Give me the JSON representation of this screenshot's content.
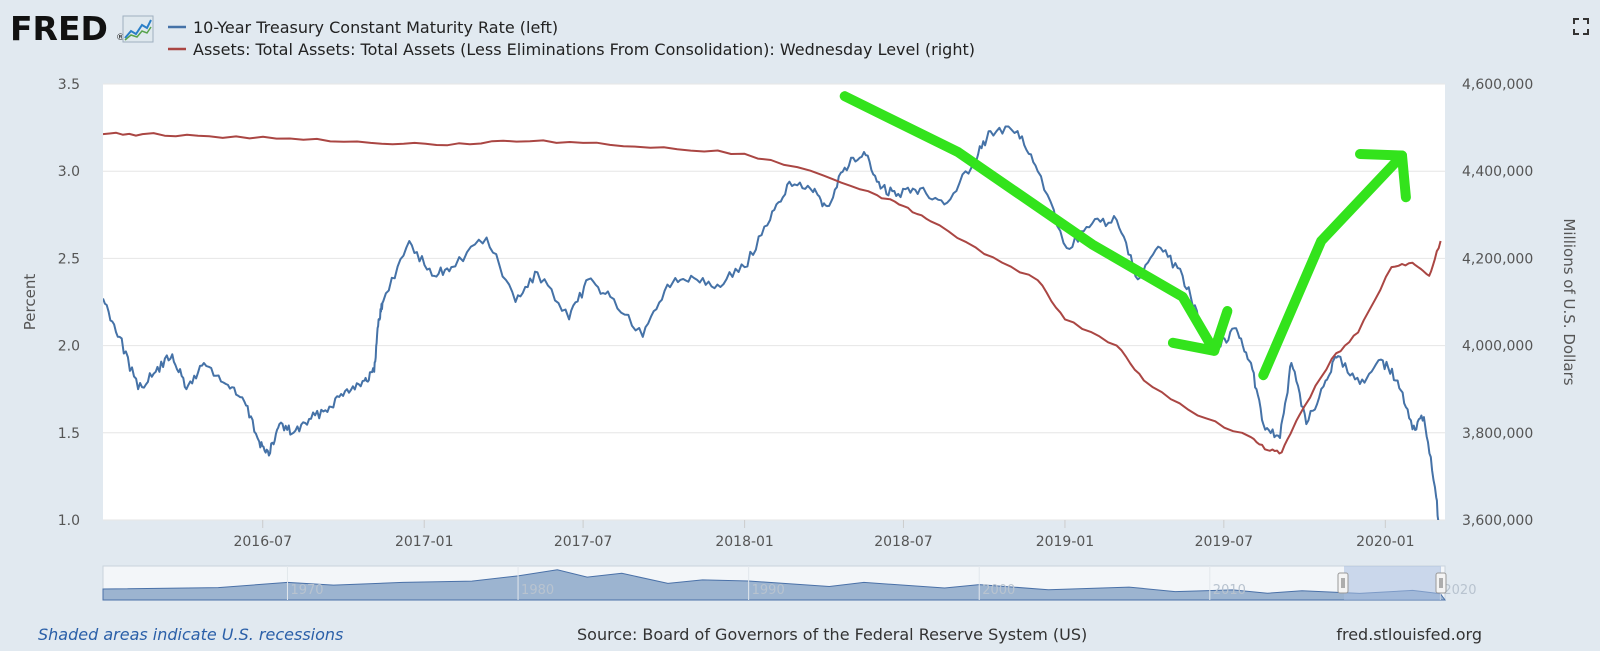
{
  "brand": {
    "logo_text": "FRED",
    "logo_mark": "®",
    "colors": {
      "panel_bg": "#e1e9f0",
      "plot_bg": "#ffffff"
    }
  },
  "controls": {
    "fullscreen_icon": "fullscreen-icon"
  },
  "chart_data": {
    "type": "line",
    "x_range": [
      "2016-01-01",
      "2020-03-09"
    ],
    "x_ticks": [
      "2016-07",
      "2017-01",
      "2017-07",
      "2018-01",
      "2018-07",
      "2019-01",
      "2019-07",
      "2020-01"
    ],
    "left_axis": {
      "label": "Percent",
      "range": [
        1.0,
        3.5
      ],
      "ticks": [
        "1.0",
        "1.5",
        "2.0",
        "2.5",
        "3.0",
        "3.5"
      ]
    },
    "right_axis": {
      "label": "Millions of U.S. Dollars",
      "range": [
        3600000,
        4600000
      ],
      "ticks": [
        "3,600,000",
        "3,800,000",
        "4,000,000",
        "4,200,000",
        "4,400,000",
        "4,600,000"
      ]
    },
    "grid": "horizontal",
    "legend_placement": "top-left",
    "series": [
      {
        "name": "10-Year Treasury Constant Maturity Rate (left)",
        "axis": "left",
        "color": "#4572a7",
        "points": [
          [
            "2016-01-01",
            2.27
          ],
          [
            "2016-01-20",
            2.05
          ],
          [
            "2016-02-10",
            1.75
          ],
          [
            "2016-03-01",
            1.85
          ],
          [
            "2016-03-20",
            1.95
          ],
          [
            "2016-04-05",
            1.75
          ],
          [
            "2016-04-25",
            1.9
          ],
          [
            "2016-05-20",
            1.78
          ],
          [
            "2016-06-10",
            1.68
          ],
          [
            "2016-06-27",
            1.45
          ],
          [
            "2016-07-08",
            1.37
          ],
          [
            "2016-07-20",
            1.55
          ],
          [
            "2016-08-05",
            1.5
          ],
          [
            "2016-08-25",
            1.58
          ],
          [
            "2016-09-15",
            1.65
          ],
          [
            "2016-10-05",
            1.75
          ],
          [
            "2016-10-25",
            1.8
          ],
          [
            "2016-11-05",
            1.85
          ],
          [
            "2016-11-10",
            2.15
          ],
          [
            "2016-11-15",
            2.25
          ],
          [
            "2016-12-15",
            2.6
          ],
          [
            "2017-01-10",
            2.4
          ],
          [
            "2017-02-01",
            2.45
          ],
          [
            "2017-03-13",
            2.62
          ],
          [
            "2017-04-15",
            2.25
          ],
          [
            "2017-05-10",
            2.42
          ],
          [
            "2017-06-15",
            2.15
          ],
          [
            "2017-07-07",
            2.38
          ],
          [
            "2017-08-01",
            2.28
          ],
          [
            "2017-09-07",
            2.05
          ],
          [
            "2017-10-05",
            2.35
          ],
          [
            "2017-11-01",
            2.4
          ],
          [
            "2017-12-01",
            2.35
          ],
          [
            "2018-01-01",
            2.45
          ],
          [
            "2018-01-30",
            2.72
          ],
          [
            "2018-02-21",
            2.94
          ],
          [
            "2018-03-20",
            2.88
          ],
          [
            "2018-04-05",
            2.8
          ],
          [
            "2018-04-25",
            3.02
          ],
          [
            "2018-05-17",
            3.11
          ],
          [
            "2018-06-05",
            2.9
          ],
          [
            "2018-06-25",
            2.87
          ],
          [
            "2018-07-20",
            2.9
          ],
          [
            "2018-08-20",
            2.82
          ],
          [
            "2018-09-20",
            3.07
          ],
          [
            "2018-10-08",
            3.23
          ],
          [
            "2018-11-08",
            3.23
          ],
          [
            "2018-12-01",
            3.0
          ],
          [
            "2019-01-03",
            2.56
          ],
          [
            "2019-02-01",
            2.7
          ],
          [
            "2019-03-01",
            2.72
          ],
          [
            "2019-03-25",
            2.38
          ],
          [
            "2019-04-20",
            2.56
          ],
          [
            "2019-05-15",
            2.4
          ],
          [
            "2019-06-05",
            2.12
          ],
          [
            "2019-06-25",
            2.0
          ],
          [
            "2019-07-15",
            2.1
          ],
          [
            "2019-08-01",
            1.9
          ],
          [
            "2019-08-15",
            1.55
          ],
          [
            "2019-09-03",
            1.47
          ],
          [
            "2019-09-16",
            1.9
          ],
          [
            "2019-10-03",
            1.55
          ],
          [
            "2019-10-25",
            1.8
          ],
          [
            "2019-11-08",
            1.94
          ],
          [
            "2019-12-03",
            1.78
          ],
          [
            "2019-12-27",
            1.92
          ],
          [
            "2020-01-15",
            1.8
          ],
          [
            "2020-02-01",
            1.52
          ],
          [
            "2020-02-14",
            1.59
          ],
          [
            "2020-02-28",
            1.13
          ],
          [
            "2020-03-06",
            0.71
          ]
        ]
      },
      {
        "name": "Assets: Total Assets: Total Assets (Less Eliminations From Consolidation): Wednesday Level (right)",
        "axis": "right",
        "color": "#aa4643",
        "points": [
          [
            "2016-01-01",
            4485000
          ],
          [
            "2016-02-15",
            4485000
          ],
          [
            "2016-05-01",
            4480000
          ],
          [
            "2016-08-01",
            4475000
          ],
          [
            "2016-11-01",
            4465000
          ],
          [
            "2017-01-15",
            4460000
          ],
          [
            "2017-04-01",
            4470000
          ],
          [
            "2017-07-01",
            4465000
          ],
          [
            "2017-10-01",
            4455000
          ],
          [
            "2018-01-01",
            4440000
          ],
          [
            "2018-04-01",
            4390000
          ],
          [
            "2018-06-01",
            4345000
          ],
          [
            "2018-07-01",
            4320000
          ],
          [
            "2018-08-01",
            4285000
          ],
          [
            "2018-10-01",
            4210000
          ],
          [
            "2018-12-01",
            4150000
          ],
          [
            "2019-01-01",
            4060000
          ],
          [
            "2019-03-01",
            4000000
          ],
          [
            "2019-04-01",
            3920000
          ],
          [
            "2019-06-01",
            3840000
          ],
          [
            "2019-08-01",
            3790000
          ],
          [
            "2019-08-20",
            3760000
          ],
          [
            "2019-09-05",
            3755000
          ],
          [
            "2019-09-25",
            3840000
          ],
          [
            "2019-11-01",
            3970000
          ],
          [
            "2019-12-01",
            4030000
          ],
          [
            "2020-01-08",
            4180000
          ],
          [
            "2020-02-01",
            4190000
          ],
          [
            "2020-02-20",
            4160000
          ],
          [
            "2020-03-04",
            4240000
          ]
        ]
      }
    ]
  },
  "navigator": {
    "ticks": [
      "1970",
      "1980",
      "1990",
      "2000",
      "2010",
      "2020"
    ],
    "selected_range": [
      "2016-01-01",
      "2020-03-09"
    ]
  },
  "footer": {
    "recession_note": "Shaded areas indicate U.S. recessions",
    "source": "Source: Board of Governors of the Federal Reserve System (US)",
    "site": "fred.stlouisfed.org"
  },
  "annotations": {
    "color": "#33e31c",
    "arrows": [
      {
        "direction": "down",
        "points": [
          [
            "2018-04-25",
            3.43
          ],
          [
            "2018-09-01",
            3.11
          ],
          [
            "2019-02-01",
            2.58
          ],
          [
            "2019-05-15",
            2.28
          ],
          [
            "2019-06-20",
            1.97
          ]
        ]
      },
      {
        "direction": "up",
        "points": [
          [
            "2019-08-15",
            1.83
          ],
          [
            "2019-10-20",
            2.6
          ],
          [
            "2020-01-20",
            3.09
          ]
        ]
      }
    ]
  }
}
